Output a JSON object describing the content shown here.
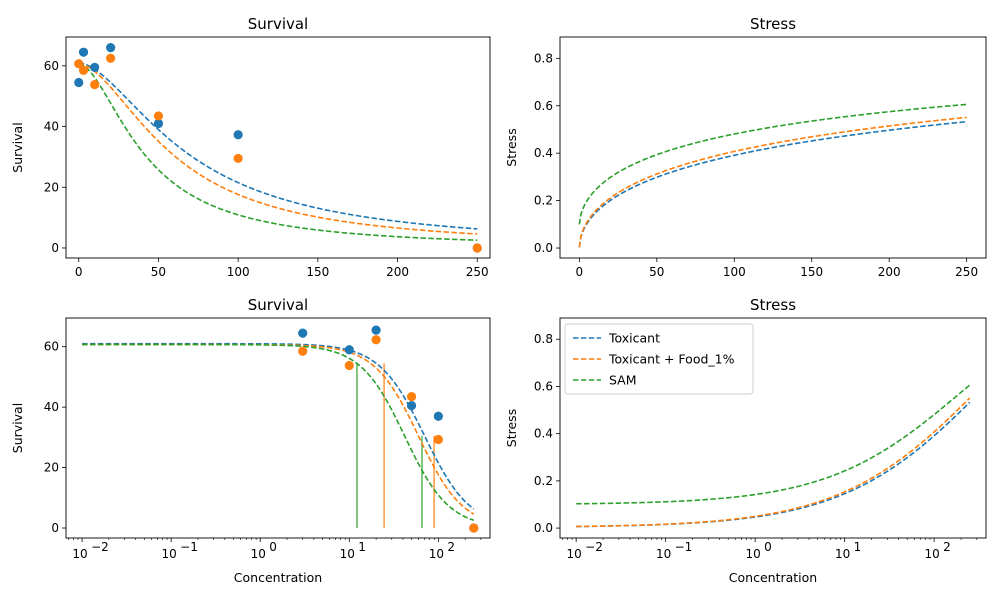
{
  "chart_data": [
    {
      "id": "survival-linear",
      "type": "line+scatter",
      "title": "Survival",
      "xlabel": "",
      "ylabel": "Survival",
      "xscale": "linear",
      "xlim": [
        -8,
        258
      ],
      "ylim": [
        -3.3,
        69.5
      ],
      "xticks": [
        0,
        50,
        100,
        150,
        200,
        250
      ],
      "yticks": [
        0,
        20,
        40,
        60
      ],
      "series": [
        {
          "name": "Toxicant",
          "kind": "curve",
          "color": "#1f77b4",
          "curve": "toxicant_survival"
        },
        {
          "name": "Toxicant + Food_1%",
          "kind": "curve",
          "color": "#ff7f0e",
          "curve": "food_survival"
        },
        {
          "name": "SAM",
          "kind": "curve",
          "color": "#2ca02c",
          "curve": "sam_survival"
        }
      ],
      "points": [
        {
          "color": "#1f77b4",
          "x": [
            0,
            3,
            10,
            20,
            50,
            100,
            250
          ],
          "y": [
            54.5,
            64.5,
            59.5,
            66,
            41,
            37.3,
            0
          ]
        },
        {
          "color": "#ff7f0e",
          "x": [
            0,
            3,
            10,
            20,
            50,
            100,
            250
          ],
          "y": [
            60.7,
            58.5,
            53.8,
            62.5,
            43.5,
            29.5,
            0
          ]
        }
      ]
    },
    {
      "id": "stress-linear",
      "type": "line",
      "title": "Stress",
      "xlabel": "",
      "ylabel": "Stress",
      "xscale": "linear",
      "xlim": [
        -12.5,
        262.5
      ],
      "ylim": [
        -0.042,
        0.89
      ],
      "xticks": [
        0,
        50,
        100,
        150,
        200,
        250
      ],
      "yticks": [
        0.0,
        0.2,
        0.4,
        0.6,
        0.8
      ],
      "series": [
        {
          "name": "Toxicant",
          "kind": "curve",
          "color": "#1f77b4",
          "curve": "toxicant_stress"
        },
        {
          "name": "Toxicant + Food_1%",
          "kind": "curve",
          "color": "#ff7f0e",
          "curve": "food_stress"
        },
        {
          "name": "SAM",
          "kind": "curve",
          "color": "#2ca02c",
          "curve": "sam_stress"
        }
      ]
    },
    {
      "id": "survival-log",
      "type": "line+scatter",
      "title": "Survival",
      "xlabel": "Concentration",
      "ylabel": "Survival",
      "xscale": "log",
      "xlim": [
        0.0066,
        380
      ],
      "ylim": [
        -3.3,
        69.5
      ],
      "xticks": [
        0.01,
        0.1,
        1,
        10,
        100
      ],
      "xticklabels": [
        [
          "10",
          "−2"
        ],
        [
          "10",
          "−1"
        ],
        [
          "10",
          "0"
        ],
        [
          "10",
          "1"
        ],
        [
          "10",
          "2"
        ]
      ],
      "yticks": [
        0,
        20,
        40,
        60
      ],
      "series": [
        {
          "name": "Toxicant",
          "kind": "curve",
          "color": "#1f77b4",
          "curve": "toxicant_survival"
        },
        {
          "name": "Toxicant + Food_1%",
          "kind": "curve",
          "color": "#ff7f0e",
          "curve": "food_survival"
        },
        {
          "name": "SAM",
          "kind": "curve",
          "color": "#2ca02c",
          "curve": "sam_survival"
        }
      ],
      "points": [
        {
          "color": "#1f77b4",
          "x": [
            3,
            10,
            20,
            50,
            100,
            250
          ],
          "y": [
            64.5,
            59,
            65.5,
            40.5,
            37,
            0
          ]
        },
        {
          "color": "#ff7f0e",
          "x": [
            3,
            10,
            20,
            50,
            100,
            250
          ],
          "y": [
            58.5,
            53.8,
            62.3,
            43.5,
            29.3,
            0
          ]
        }
      ],
      "vlines": [
        {
          "x": 12.2,
          "y": 54.5,
          "color": "#2ca02c"
        },
        {
          "x": 24.6,
          "y": 54.5,
          "color": "#ff7f0e"
        },
        {
          "x": 65.5,
          "y": 30.5,
          "color": "#2ca02c"
        },
        {
          "x": 89.5,
          "y": 30.5,
          "color": "#ff7f0e"
        }
      ]
    },
    {
      "id": "stress-log",
      "type": "line",
      "title": "Stress",
      "xlabel": "Concentration",
      "ylabel": "Stress",
      "xscale": "log",
      "xlim": [
        0.0066,
        380
      ],
      "ylim": [
        -0.042,
        0.89
      ],
      "xticks": [
        0.01,
        0.1,
        1,
        10,
        100
      ],
      "xticklabels": [
        [
          "10",
          "−2"
        ],
        [
          "10",
          "−1"
        ],
        [
          "10",
          "0"
        ],
        [
          "10",
          "1"
        ],
        [
          "10",
          "2"
        ]
      ],
      "yticks": [
        0.0,
        0.2,
        0.4,
        0.6,
        0.8
      ],
      "series": [
        {
          "name": "Toxicant",
          "kind": "curve",
          "color": "#1f77b4",
          "curve": "toxicant_stress"
        },
        {
          "name": "Toxicant + Food_1%",
          "kind": "curve",
          "color": "#ff7f0e",
          "curve": "food_stress"
        },
        {
          "name": "SAM",
          "kind": "curve",
          "color": "#2ca02c",
          "curve": "sam_stress"
        }
      ],
      "legend": {
        "placement": "upper-left",
        "entries": [
          "Toxicant",
          "Toxicant + Food_1%",
          "SAM"
        ]
      }
    }
  ],
  "curves": {
    "toxicant_survival": {
      "max": 61,
      "ec50": 70,
      "slope": 1.7
    },
    "food_survival": {
      "max": 60.7,
      "ec50": 60,
      "slope": 1.75
    },
    "sam_survival": {
      "max": 60.7,
      "ec50": 42,
      "slope": 1.75
    },
    "toxicant_stress": {
      "base": 0.003,
      "top": 1.2,
      "ec50": 380,
      "slope": 0.55
    },
    "food_stress": {
      "base": 0.003,
      "top": 1.2,
      "ec50": 340,
      "slope": 0.55
    },
    "sam_stress": {
      "base": 0.1,
      "top": 1.05,
      "ec50": 200,
      "slope": 0.58
    }
  },
  "legend": {
    "entries": [
      "Toxicant",
      "Toxicant + Food_1%",
      "SAM"
    ],
    "colors": [
      "#1f77b4",
      "#ff7f0e",
      "#2ca02c"
    ]
  }
}
